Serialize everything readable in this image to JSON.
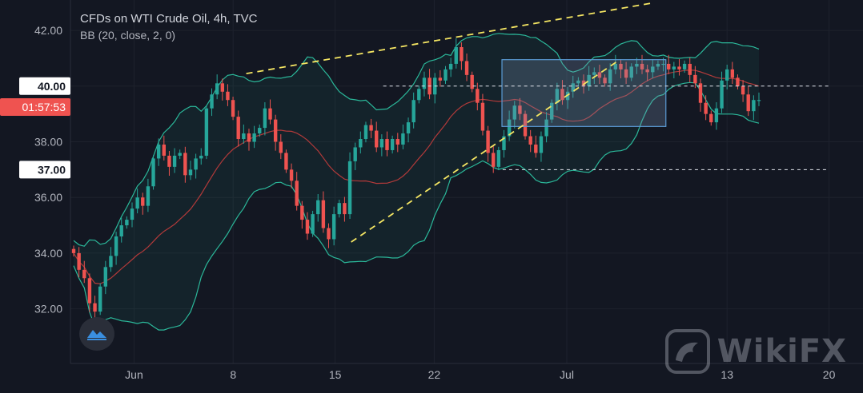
{
  "legend": {
    "title": "CFDs on WTI Crude Oil, 4h, TVC",
    "indicator": "BB (20, close, 2, 0)"
  },
  "colors": {
    "background": "#131722",
    "up": "#26a69a",
    "down": "#ef5350",
    "bb_band": "#2bb89a",
    "bb_basis": "#b23a3a",
    "trendline": "#f5e663",
    "countdown": "#ef5350",
    "box": "#5b9bd5"
  },
  "icons": [
    "tradingview-logo-icon",
    "wikifx-logo-icon"
  ],
  "watermark_text": "WikiFX",
  "chart_data": {
    "type": "candlestick",
    "title": "CFDs on WTI Crude Oil, 4h, TVC",
    "indicator": "BB (20, close, 2, 0)",
    "x_tick_labels": [
      "Jun",
      "8",
      "15",
      "22",
      "Jul",
      "13",
      "20"
    ],
    "y_tick_labels": [
      "42.00",
      "40.00",
      "38.00",
      "36.00",
      "34.00",
      "32.00"
    ],
    "ylim": [
      30.4,
      42.7
    ],
    "price_labels": [
      {
        "text": "40.00",
        "value": 40.0,
        "style": "line"
      },
      {
        "text": "01:57:53",
        "value": 39.25,
        "style": "countdown"
      },
      {
        "text": "37.00",
        "value": 37.0,
        "style": "line"
      }
    ],
    "horizontal_lines": [
      {
        "value": 40.0,
        "from_t": 17.4,
        "to_t": 48
      },
      {
        "value": 37.0,
        "from_t": 25.6,
        "to_t": 48
      }
    ],
    "trendlines": [
      {
        "from": [
          8.0,
          40.45
        ],
        "to": [
          23.4,
          41.45
        ],
        "extend": true,
        "to_ext": [
          35.8,
          42.98
        ]
      },
      {
        "from": [
          15.2,
          34.4
        ],
        "to": [
          33.5,
          40.9
        ]
      }
    ],
    "rectangle": {
      "t1": 25.55,
      "t2": 36.8,
      "p1": 38.55,
      "p2": 40.95
    },
    "close_series": [
      34.0,
      33.4,
      33.1,
      32.2,
      31.9,
      32.8,
      33.5,
      33.9,
      34.6,
      35.0,
      35.2,
      35.6,
      36.0,
      35.7,
      36.4,
      37.4,
      37.9,
      37.5,
      37.1,
      37.5,
      37.6,
      36.8,
      37.0,
      37.4,
      37.5,
      39.2,
      39.7,
      40.1,
      39.8,
      39.5,
      38.9,
      38.1,
      38.3,
      38.0,
      38.3,
      38.5,
      39.2,
      38.8,
      38.0,
      37.6,
      37.0,
      36.6,
      35.7,
      35.2,
      34.7,
      35.4,
      35.9,
      34.9,
      34.5,
      35.4,
      35.8,
      35.4,
      37.3,
      37.8,
      38.1,
      38.6,
      38.4,
      37.8,
      38.1,
      37.7,
      38.1,
      37.9,
      38.3,
      38.7,
      39.5,
      39.9,
      40.3,
      39.7,
      40.3,
      40.2,
      40.6,
      40.8,
      41.4,
      40.9,
      40.4,
      39.9,
      39.4,
      38.4,
      37.6,
      37.1,
      37.7,
      38.2,
      38.8,
      39.3,
      39.0,
      38.2,
      37.9,
      37.6,
      38.2,
      38.8,
      39.4,
      39.9,
      39.5,
      39.8,
      40.1,
      40.2,
      40.0,
      40.4,
      40.5,
      40.3,
      40.1,
      40.6,
      40.8,
      40.6,
      40.3,
      40.7,
      40.8,
      40.6,
      40.5,
      40.7,
      40.8,
      40.8,
      40.6,
      40.7,
      40.6,
      40.8,
      40.4,
      40.1,
      39.4,
      39.0,
      38.7,
      39.2,
      40.2,
      40.6,
      40.3,
      40.0,
      39.7,
      39.1,
      39.5,
      39.5
    ],
    "series": [
      {
        "name": "close",
        "kind": "candles",
        "values_ref": "close_series"
      },
      {
        "name": "basis",
        "kind": "line"
      },
      {
        "name": "upper",
        "kind": "line"
      },
      {
        "name": "lower",
        "kind": "line"
      }
    ]
  }
}
